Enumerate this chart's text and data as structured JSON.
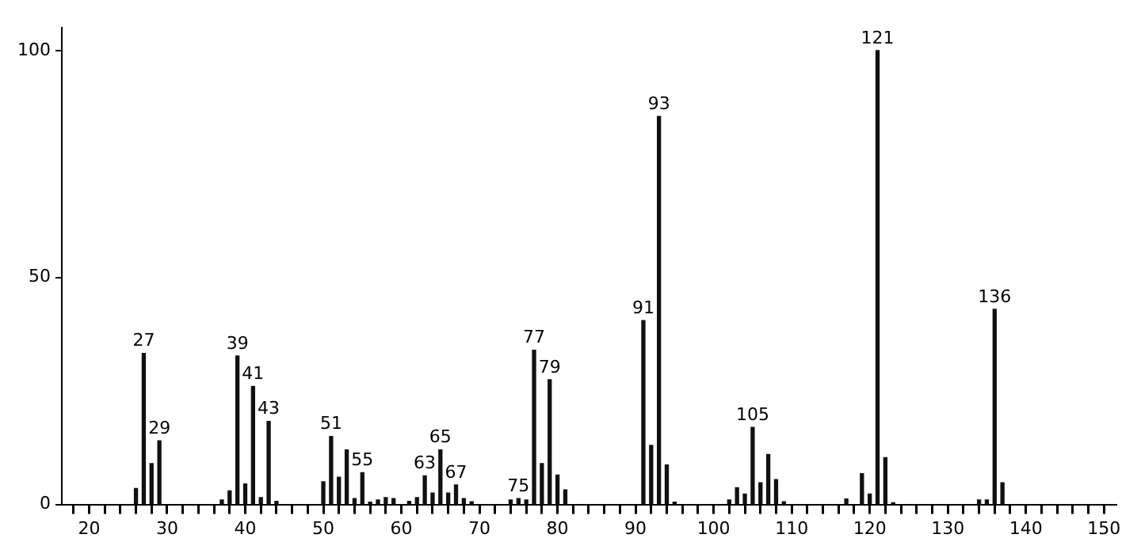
{
  "chart_data": {
    "type": "bar",
    "x": [
      26,
      27,
      28,
      29,
      37,
      38,
      39,
      40,
      41,
      42,
      43,
      44,
      50,
      51,
      52,
      53,
      54,
      55,
      56,
      57,
      58,
      59,
      61,
      62,
      63,
      64,
      65,
      66,
      67,
      68,
      69,
      74,
      75,
      76,
      77,
      78,
      79,
      80,
      81,
      91,
      92,
      93,
      94,
      95,
      102,
      103,
      104,
      105,
      106,
      107,
      108,
      109,
      117,
      119,
      120,
      121,
      122,
      123,
      134,
      135,
      136,
      137
    ],
    "values": [
      3.5,
      33.3,
      9,
      14,
      1,
      3,
      32.7,
      4.5,
      26,
      1.5,
      18.3,
      0.7,
      5,
      15,
      6,
      12,
      1.3,
      7,
      0.5,
      1,
      1.5,
      1.3,
      0.7,
      1.5,
      6.3,
      2.5,
      12,
      2.5,
      4.3,
      1.3,
      0.6,
      1,
      1.3,
      1,
      34,
      9,
      27.5,
      6.5,
      3.2,
      40.5,
      13,
      85.5,
      8.7,
      0.5,
      1,
      3.7,
      2.3,
      17,
      4.8,
      11,
      5.5,
      0.6,
      1.2,
      6.8,
      2.3,
      100,
      10.3,
      0.4,
      1,
      1,
      43,
      4.8
    ],
    "annotations": [
      {
        "text": "27",
        "x": 27,
        "y": 33.3
      },
      {
        "text": "29",
        "x": 29,
        "y": 14
      },
      {
        "text": "39",
        "x": 39,
        "y": 32.7
      },
      {
        "text": "41",
        "x": 41,
        "y": 26
      },
      {
        "text": "43",
        "x": 43,
        "y": 18.3
      },
      {
        "text": "51",
        "x": 51,
        "y": 15
      },
      {
        "text": "55",
        "x": 55,
        "y": 7
      },
      {
        "text": "63",
        "x": 63,
        "y": 6.3
      },
      {
        "text": "65",
        "x": 65,
        "y": 12
      },
      {
        "text": "67",
        "x": 67,
        "y": 4.3
      },
      {
        "text": "75",
        "x": 75,
        "y": 1.3
      },
      {
        "text": "77",
        "x": 77,
        "y": 34
      },
      {
        "text": "79",
        "x": 79,
        "y": 27.5
      },
      {
        "text": "91",
        "x": 91,
        "y": 40.5
      },
      {
        "text": "93",
        "x": 93,
        "y": 85.5
      },
      {
        "text": "105",
        "x": 105,
        "y": 17
      },
      {
        "text": "121",
        "x": 121,
        "y": 100
      },
      {
        "text": "136",
        "x": 136,
        "y": 43
      }
    ],
    "color": "#111111",
    "xlim": [
      16.5,
      151.5
    ],
    "xticks": [
      {
        "value": 18,
        "label": null
      },
      20,
      {
        "value": 22,
        "label": null
      },
      {
        "value": 24,
        "label": null
      },
      {
        "value": 26,
        "label": null
      },
      {
        "value": 28,
        "label": null
      },
      30,
      {
        "value": 32,
        "label": null
      },
      {
        "value": 34,
        "label": null
      },
      {
        "value": 36,
        "label": null
      },
      {
        "value": 38,
        "label": null
      },
      40,
      {
        "value": 42,
        "label": null
      },
      {
        "value": 44,
        "label": null
      },
      {
        "value": 46,
        "label": null
      },
      {
        "value": 48,
        "label": null
      },
      50,
      {
        "value": 52,
        "label": null
      },
      {
        "value": 54,
        "label": null
      },
      {
        "value": 56,
        "label": null
      },
      {
        "value": 58,
        "label": null
      },
      60,
      {
        "value": 62,
        "label": null
      },
      {
        "value": 64,
        "label": null
      },
      {
        "value": 66,
        "label": null
      },
      {
        "value": 68,
        "label": null
      },
      70,
      {
        "value": 72,
        "label": null
      },
      {
        "value": 74,
        "label": null
      },
      {
        "value": 76,
        "label": null
      },
      {
        "value": 78,
        "label": null
      },
      80,
      {
        "value": 82,
        "label": null
      },
      {
        "value": 84,
        "label": null
      },
      {
        "value": 86,
        "label": null
      },
      {
        "value": 88,
        "label": null
      },
      90,
      {
        "value": 92,
        "label": null
      },
      {
        "value": 94,
        "label": null
      },
      {
        "value": 96,
        "label": null
      },
      {
        "value": 98,
        "label": null
      },
      100,
      {
        "value": 102,
        "label": null
      },
      {
        "value": 104,
        "label": null
      },
      {
        "value": 106,
        "label": null
      },
      {
        "value": 108,
        "label": null
      },
      110,
      {
        "value": 112,
        "label": null
      },
      {
        "value": 114,
        "label": null
      },
      {
        "value": 116,
        "label": null
      },
      {
        "value": 118,
        "label": null
      },
      120,
      {
        "value": 122,
        "label": null
      },
      {
        "value": 124,
        "label": null
      },
      {
        "value": 126,
        "label": null
      },
      {
        "value": 128,
        "label": null
      },
      130,
      {
        "value": 132,
        "label": null
      },
      {
        "value": 134,
        "label": null
      },
      {
        "value": 136,
        "label": null
      },
      {
        "value": 138,
        "label": null
      },
      140,
      {
        "value": 142,
        "label": null
      },
      {
        "value": 144,
        "label": null
      },
      {
        "value": 146,
        "label": null
      },
      {
        "value": 148,
        "label": null
      },
      150
    ],
    "ylim": [
      0,
      105
    ],
    "yticks": [
      0,
      50,
      100
    ],
    "grid": false,
    "legend": false
  }
}
